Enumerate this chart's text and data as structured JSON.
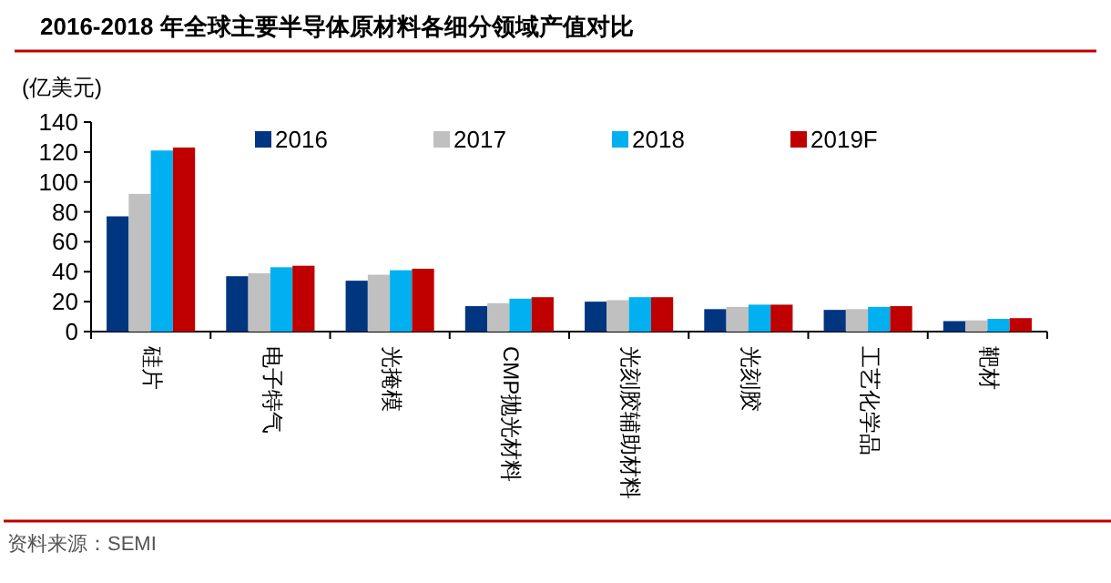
{
  "chart_data": {
    "type": "bar",
    "title": "2016-2018 年全球主要半导体原材料各细分领域产值对比",
    "ylabel": "(亿美元)",
    "categories": [
      "硅片",
      "电子特气",
      "光掩模",
      "CMP抛光材料",
      "光刻胶辅助材料",
      "光刻胶",
      "工艺化学品",
      "靶材"
    ],
    "series": [
      {
        "name": "2016",
        "color": "#003580",
        "values": [
          77,
          37,
          34,
          17,
          20,
          15,
          14.5,
          7
        ]
      },
      {
        "name": "2017",
        "color": "#c0c0c0",
        "values": [
          92,
          39,
          38,
          19,
          21,
          16.5,
          15,
          7.5
        ]
      },
      {
        "name": "2018",
        "color": "#00b0f0",
        "values": [
          121,
          43,
          41,
          22,
          23,
          18,
          16.5,
          8.5
        ]
      },
      {
        "name": "2019F",
        "color": "#c00000",
        "values": [
          123,
          44,
          42,
          23,
          23,
          18,
          17,
          9
        ]
      }
    ],
    "ylim": [
      0,
      140
    ],
    "yticks": [
      0,
      20,
      40,
      60,
      80,
      100,
      120,
      140
    ],
    "grid": false,
    "legend": "top",
    "annotations": [
      "资料来源：SEMI"
    ]
  }
}
